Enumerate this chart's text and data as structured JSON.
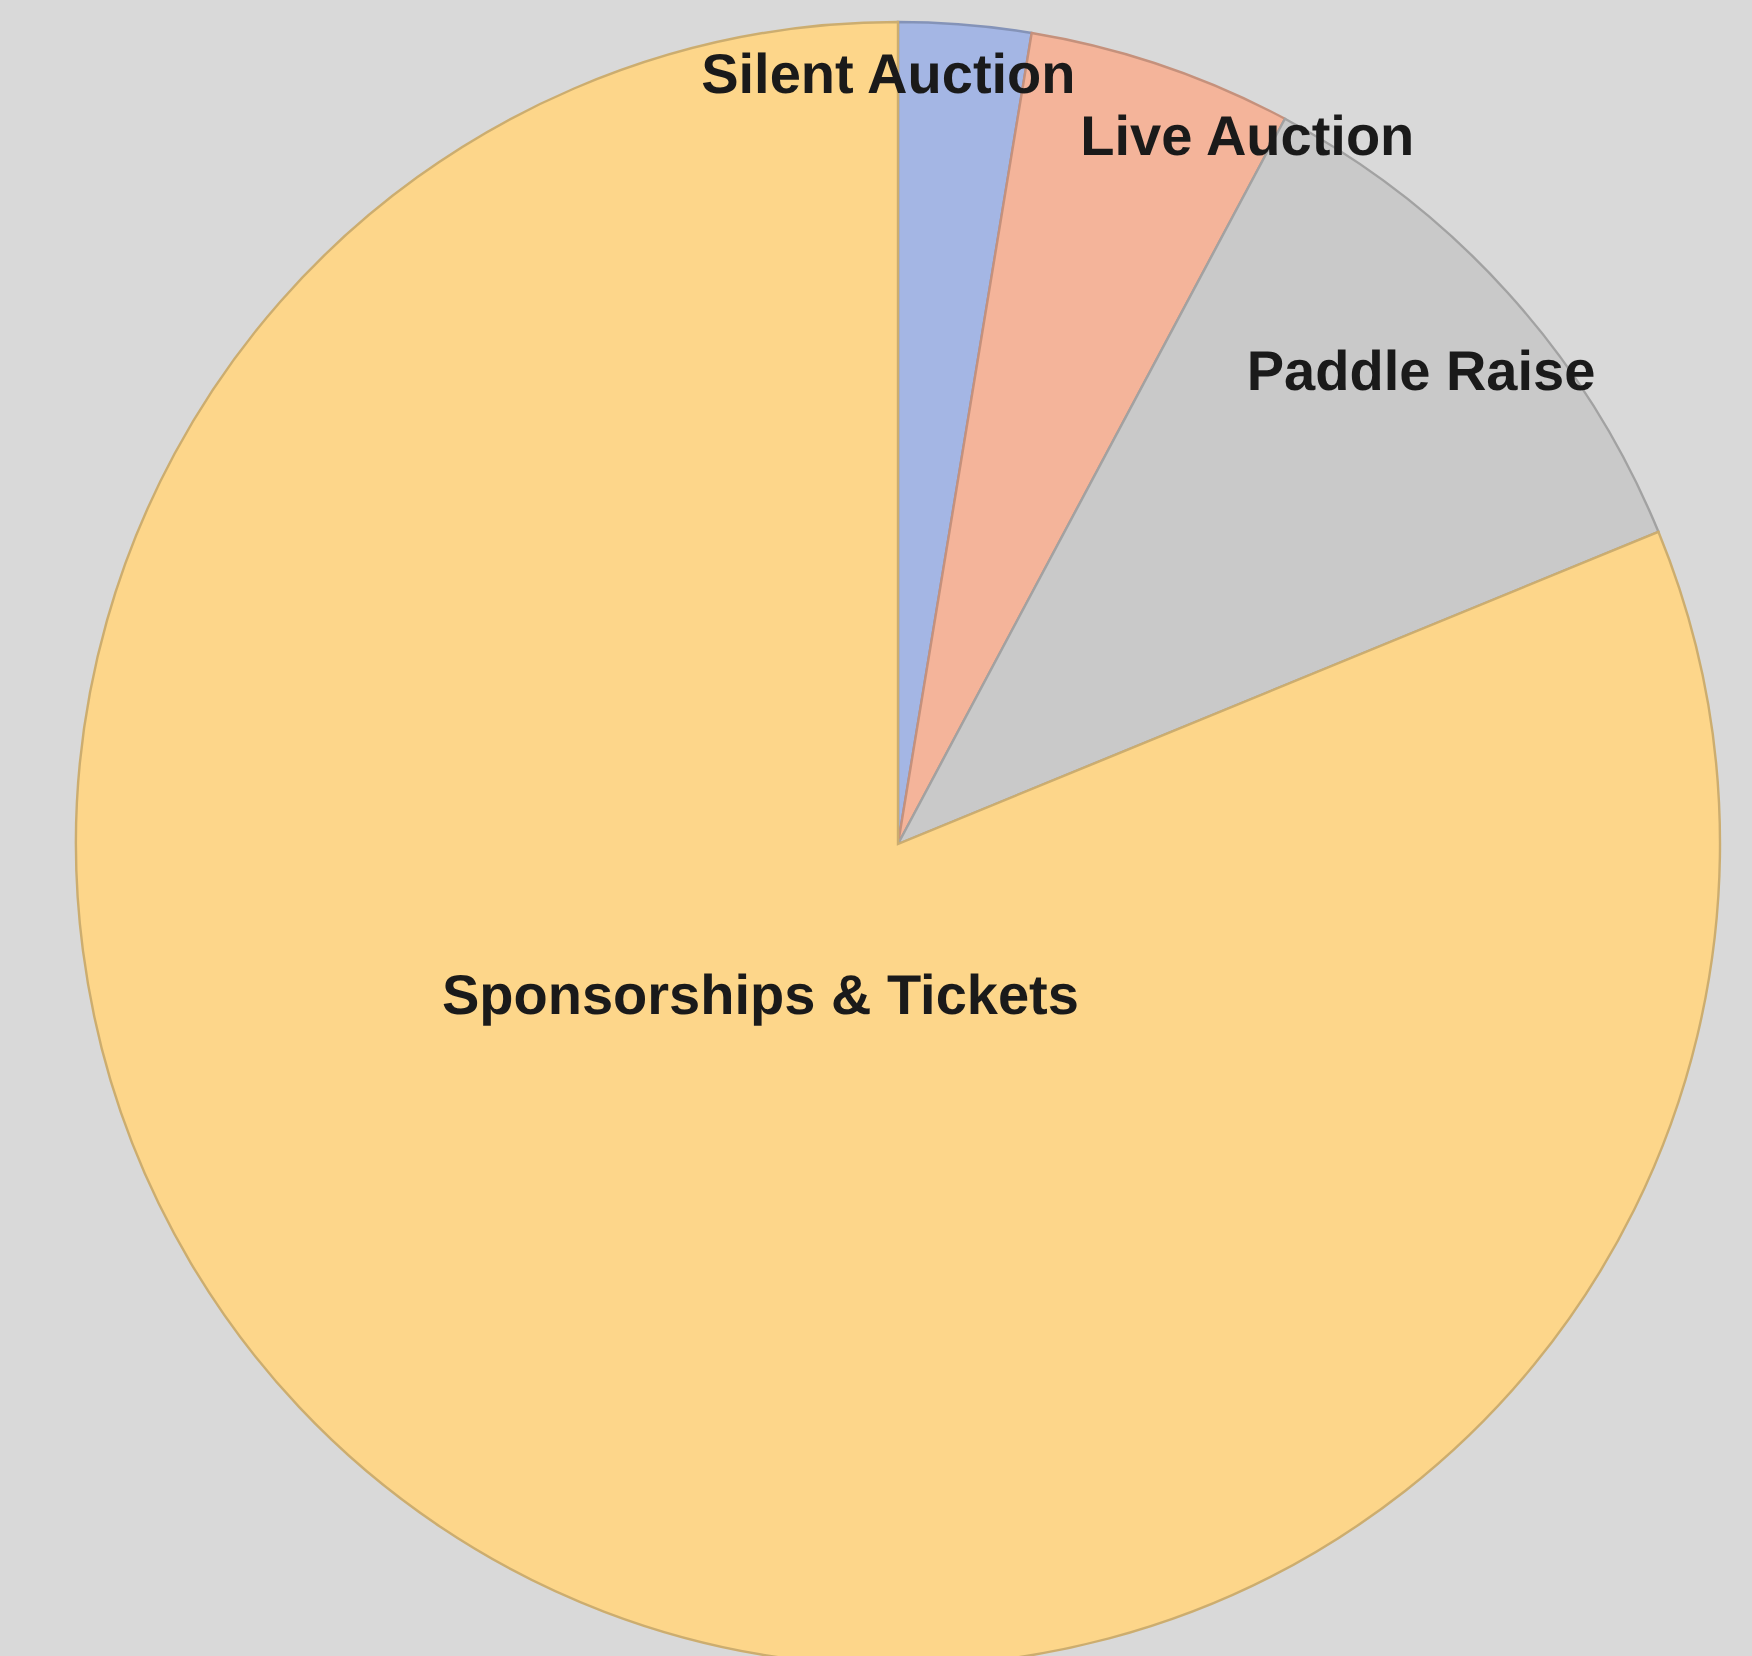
{
  "chart_data": {
    "type": "pie",
    "categories": [
      "Silent Auction",
      "Live Auction",
      "Paddle Raise",
      "Sponsorships & Tickets"
    ],
    "values": [
      2.6,
      5.2,
      11,
      81.2
    ],
    "colors": [
      "#a4b6e4",
      "#f4b49a",
      "#c9c9c9",
      "#fdd68a"
    ]
  }
}
